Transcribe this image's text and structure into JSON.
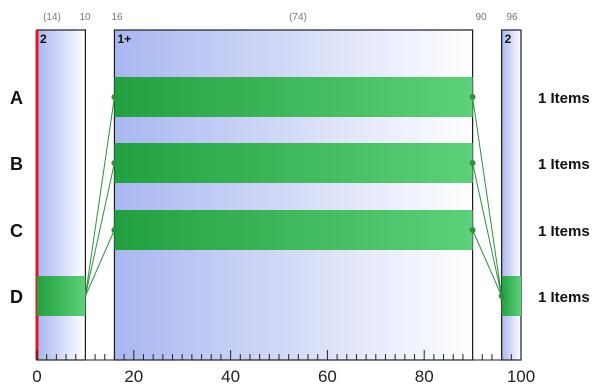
{
  "chart_data": {
    "type": "bar",
    "x_axis": {
      "min": 0,
      "max": 100,
      "tick_labels": [
        "0",
        "20",
        "40",
        "60",
        "80",
        "100"
      ]
    },
    "top_labels": [
      "(14)",
      "10",
      "16",
      "(74)",
      "90",
      "96"
    ],
    "panels": [
      {
        "label": "2",
        "start": 0,
        "end": 10
      },
      {
        "label": "1+",
        "start": 16,
        "end": 90
      },
      {
        "label": "2",
        "start": 96,
        "end": 100
      }
    ],
    "rows": [
      {
        "label": "A",
        "bar_start": 16,
        "bar_end": 90,
        "count_text": "1 Items"
      },
      {
        "label": "B",
        "bar_start": 16,
        "bar_end": 90,
        "count_text": "1 Items"
      },
      {
        "label": "C",
        "bar_start": 16,
        "bar_end": 90,
        "count_text": "1 Items"
      },
      {
        "label": "D",
        "bar_start": 0,
        "bar_end": 10,
        "bar2_start": 96,
        "bar2_end": 100,
        "count_text": "1 Items"
      }
    ],
    "colors": {
      "bar_dark": "#22a040",
      "bar_light": "#5ed07a",
      "panel_edge": "#a9b7f0",
      "panel_fade": "#ffffff",
      "red_line": "#e8141e",
      "connector": "#2f8f3f"
    }
  }
}
